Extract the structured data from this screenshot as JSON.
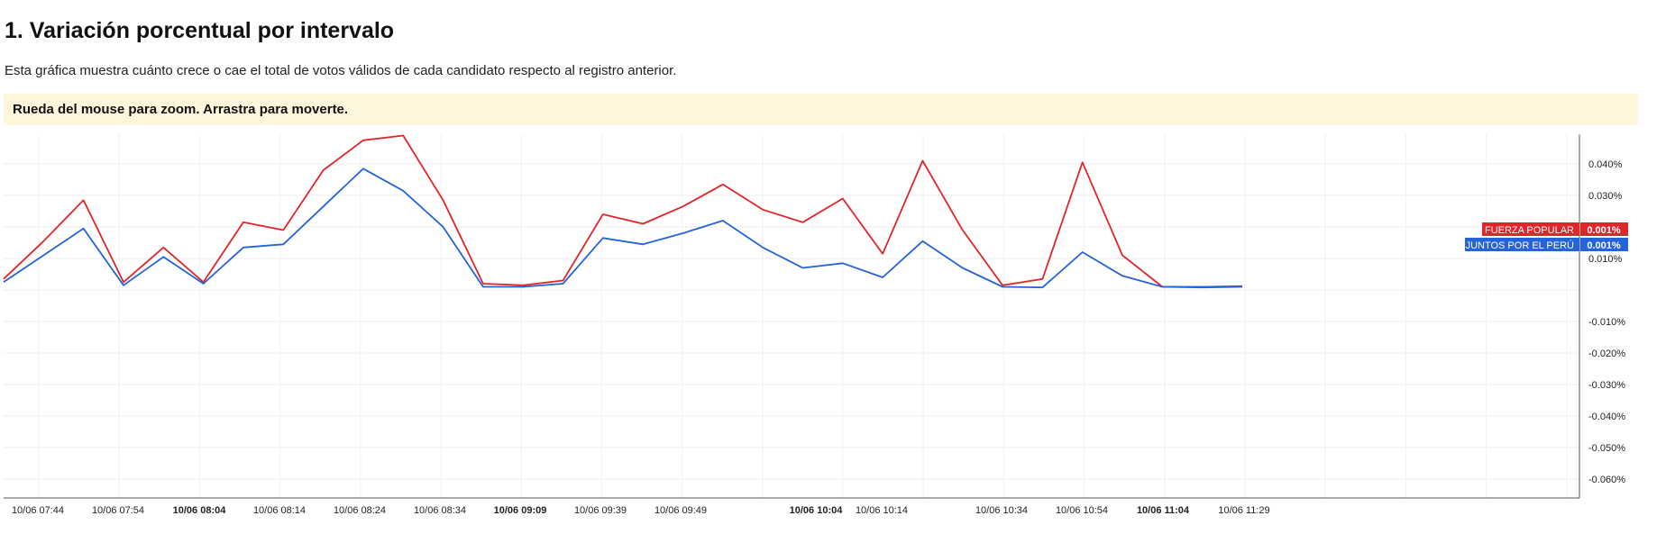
{
  "header": {
    "title": "1. Variación porcentual por intervalo",
    "description": "Esta gráfica muestra cuánto crece o cae el total de votos válidos de cada candidato respecto al registro anterior.",
    "hint": "Rueda del mouse para zoom. Arrastra para moverte."
  },
  "chart_data": {
    "type": "line",
    "x_tick_labels": [
      {
        "label": "10/06 07:44",
        "bold": false
      },
      {
        "label": "10/06 07:54",
        "bold": false
      },
      {
        "label": "10/06 08:04",
        "bold": true
      },
      {
        "label": "10/06 08:14",
        "bold": false
      },
      {
        "label": "10/06 08:24",
        "bold": false
      },
      {
        "label": "10/06 08:34",
        "bold": false
      },
      {
        "label": "10/06 09:09",
        "bold": true
      },
      {
        "label": "10/06 09:39",
        "bold": false
      },
      {
        "label": "10/06 09:49",
        "bold": false
      },
      {
        "label": "10/06 10:04",
        "bold": true
      },
      {
        "label": "10/06 10:14",
        "bold": false
      },
      {
        "label": "10/06 10:34",
        "bold": false
      },
      {
        "label": "10/06 10:54",
        "bold": false
      },
      {
        "label": "10/06 11:04",
        "bold": true
      },
      {
        "label": "10/06 11:29",
        "bold": false
      }
    ],
    "y_ticks": [
      0.04,
      0.03,
      0.02,
      0.01,
      -0.01,
      -0.02,
      -0.03,
      -0.04,
      -0.05,
      -0.06
    ],
    "y_tick_labels": [
      "0.040%",
      "0.030%",
      "0.020%",
      "0.010%",
      "-0.010%",
      "-0.020%",
      "-0.030%",
      "-0.040%",
      "-0.050%",
      "-0.060%"
    ],
    "ylim": [
      -0.066,
      0.05
    ],
    "y_unit": "%",
    "series": [
      {
        "name": "FUERZA POPULAR",
        "color": "#e0252b",
        "last_value_label": "0.001%",
        "values": [
          0.0035,
          0.0155,
          0.0285,
          0.0025,
          0.0135,
          0.0025,
          0.0215,
          0.019,
          0.038,
          0.0475,
          0.049,
          0.0285,
          0.002,
          0.0015,
          0.003,
          0.024,
          0.021,
          0.0265,
          0.0335,
          0.0255,
          0.0215,
          0.029,
          0.0115,
          0.041,
          0.019,
          0.0015,
          0.0035,
          0.0405,
          0.011,
          0.001,
          0.0008,
          0.001
        ]
      },
      {
        "name": "JUNTOS POR EL PERÚ",
        "color": "#2463d9",
        "last_value_label": "0.001%",
        "values": [
          0.0025,
          0.011,
          0.0195,
          0.0015,
          0.0105,
          0.002,
          0.0135,
          0.0145,
          0.0265,
          0.0385,
          0.0315,
          0.02,
          0.001,
          0.001,
          0.002,
          0.0165,
          0.0145,
          0.018,
          0.022,
          0.0135,
          0.007,
          0.0085,
          0.004,
          0.0155,
          0.007,
          0.001,
          0.0008,
          0.012,
          0.0045,
          0.001,
          0.001,
          0.0012
        ]
      }
    ],
    "grid": true,
    "legend": "right"
  }
}
